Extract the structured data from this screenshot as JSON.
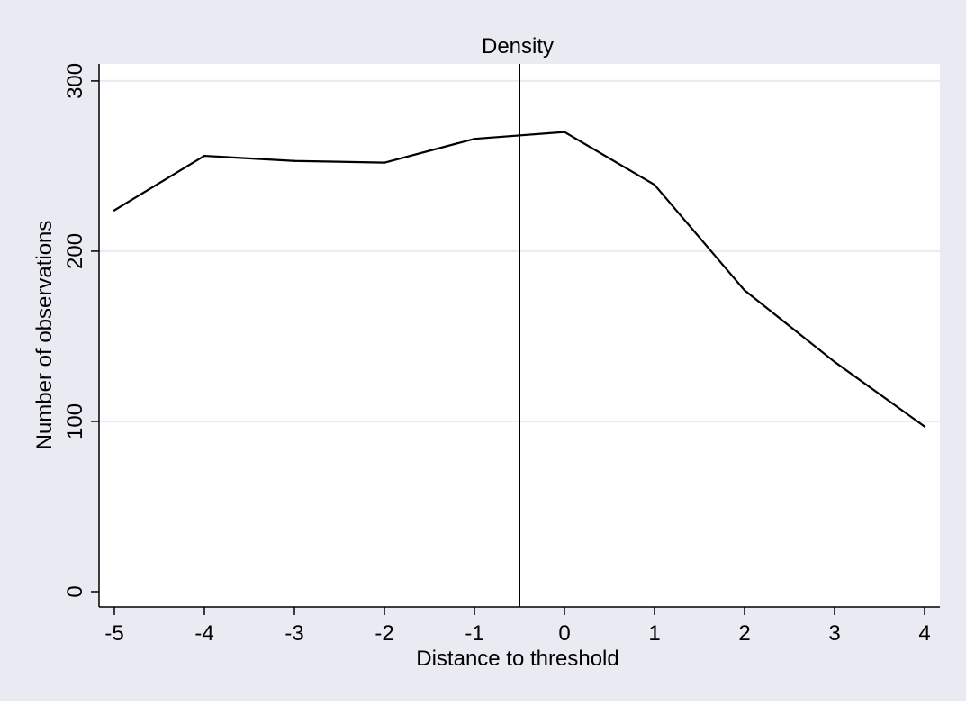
{
  "chart_data": {
    "type": "line",
    "title": "Density",
    "xlabel": "Distance to threshold",
    "ylabel": "Number of observations",
    "x": [
      -5,
      -4,
      -3,
      -2,
      -1,
      0,
      1,
      2,
      3,
      4
    ],
    "series": [
      {
        "values": [
          224,
          256,
          253,
          252,
          266,
          270,
          239,
          177,
          135,
          97
        ]
      }
    ],
    "xticks": [
      -5,
      -4,
      -3,
      -2,
      -1,
      0,
      1,
      2,
      3,
      4
    ],
    "yticks": [
      0,
      100,
      200,
      300
    ],
    "xlim": [
      -5.17,
      4.17
    ],
    "ylim": [
      -9,
      310
    ],
    "threshold_line_x": -0.5,
    "grid": true,
    "legend": "none",
    "colors": {
      "background": "#eaeaf2",
      "plot_background": "#ffffff",
      "grid": "#eaeaf2",
      "line": "#000000"
    }
  }
}
